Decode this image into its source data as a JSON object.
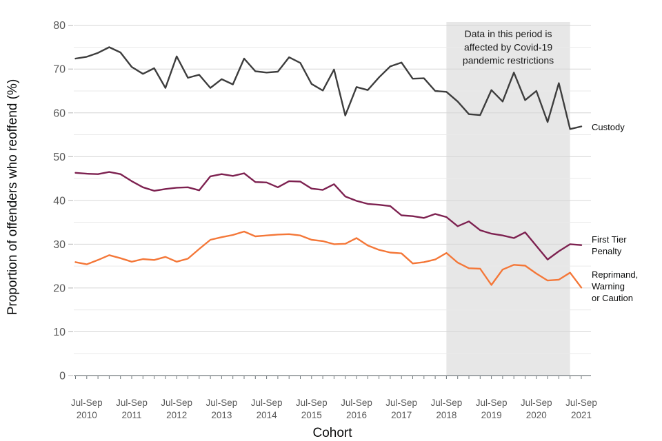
{
  "chart_data": {
    "type": "line",
    "title": "",
    "xlabel": "Cohort",
    "ylabel": "Proportion of offenders who reoffend (%)",
    "ylim": [
      0,
      80
    ],
    "y_major_ticks": [
      0,
      10,
      20,
      30,
      40,
      50,
      60,
      70,
      80
    ],
    "y_minor_step": 5,
    "grid": true,
    "legend_position": "right-of-line-ends",
    "x_quarter_points": 46,
    "x_tick_label_quarter": "Jul-Sep",
    "x_tick_label_years": [
      "2010",
      "2011",
      "2012",
      "2013",
      "2014",
      "2015",
      "2016",
      "2017",
      "2018",
      "2019",
      "2020",
      "2021"
    ],
    "x_label_point_indices": [
      1,
      5,
      9,
      13,
      17,
      21,
      25,
      29,
      33,
      37,
      41,
      45
    ],
    "series": [
      {
        "name": "Custody",
        "key": "custody",
        "color": "#3d3d3d",
        "label_lines": [
          "Custody"
        ],
        "values": [
          72.4,
          72.8,
          73.7,
          75.0,
          73.8,
          70.5,
          68.9,
          70.2,
          65.7,
          72.9,
          68.0,
          68.7,
          65.7,
          67.7,
          66.5,
          72.4,
          69.5,
          69.2,
          69.4,
          72.7,
          71.4,
          66.6,
          65.1,
          69.9,
          59.4,
          65.9,
          65.2,
          68.1,
          70.6,
          71.5,
          67.8,
          67.9,
          65.0,
          64.8,
          62.6,
          59.7,
          59.5,
          65.2,
          62.6,
          69.2,
          62.9,
          65.0,
          57.9,
          66.8,
          56.3,
          56.9
        ]
      },
      {
        "name": "First Tier Penalty",
        "key": "first-tier-penalty",
        "color": "#7d2150",
        "label_lines": [
          "First Tier",
          "Penalty"
        ],
        "values": [
          46.3,
          46.1,
          46.0,
          46.5,
          46.0,
          44.4,
          43.0,
          42.2,
          42.6,
          42.9,
          43.0,
          42.3,
          45.5,
          46.0,
          45.6,
          46.2,
          44.2,
          44.1,
          43.0,
          44.4,
          44.3,
          42.7,
          42.4,
          43.7,
          40.9,
          39.9,
          39.2,
          39.0,
          38.7,
          36.6,
          36.4,
          36.0,
          36.9,
          36.2,
          34.1,
          35.2,
          33.2,
          32.4,
          32.0,
          31.4,
          32.7,
          29.6,
          26.5,
          28.4,
          30.0,
          29.8
        ]
      },
      {
        "name": "Reprimand, Warning or Caution",
        "key": "reprimand-warning-caution",
        "color": "#f47738",
        "label_lines": [
          "Reprimand,",
          "Warning",
          "or Caution"
        ],
        "values": [
          25.9,
          25.4,
          26.4,
          27.5,
          26.8,
          26.0,
          26.6,
          26.4,
          27.1,
          26.0,
          26.7,
          28.9,
          31.0,
          31.6,
          32.1,
          32.9,
          31.8,
          32.0,
          32.2,
          32.3,
          32.0,
          31.0,
          30.7,
          30.0,
          30.1,
          31.4,
          29.7,
          28.7,
          28.1,
          27.9,
          25.6,
          25.9,
          26.5,
          28.0,
          25.8,
          24.5,
          24.4,
          20.7,
          24.2,
          25.3,
          25.1,
          23.3,
          21.7,
          21.9,
          23.5,
          20.1
        ]
      }
    ],
    "annotation": {
      "lines": [
        "Data in this period is",
        "affected by Covid-19",
        "pandemic restrictions"
      ],
      "region_start_point_index": 33,
      "region_end_point_index": 44,
      "region_color": "#e7e7e7",
      "text_color": "#1a1a1a"
    },
    "style_colors": {
      "axis_line": "#6f777b",
      "tick_mark": "#6f777b",
      "y_tick_dash": "#c0c0c0",
      "grid_major": "#d6d6d6",
      "grid_minor": "#eaeaea",
      "tick_text": "#595959",
      "title_text": "#0b0c0c"
    }
  }
}
